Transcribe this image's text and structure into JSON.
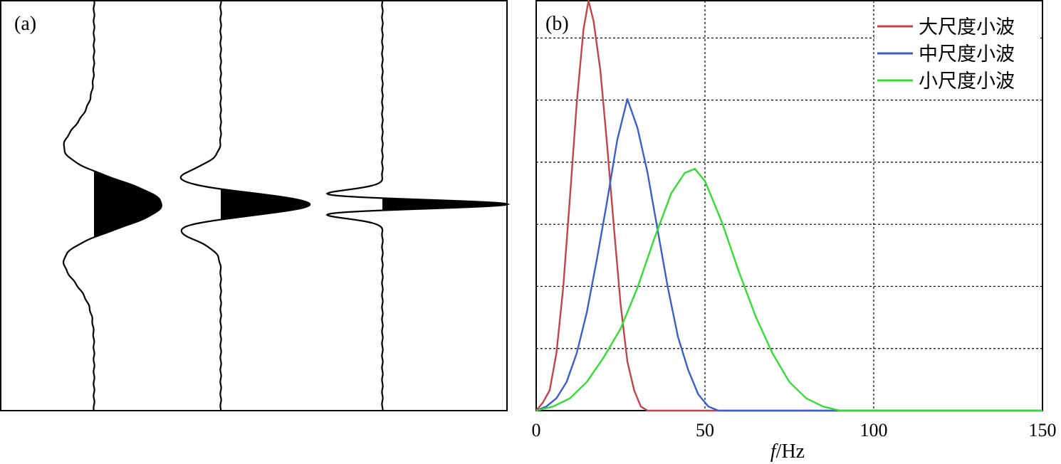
{
  "chart_data": [
    {
      "panel": "(a)",
      "type": "line",
      "traces": [
        {
          "amplitude": 1.0,
          "center": 0.0,
          "width": 0.65,
          "sign": -1
        },
        {
          "amplitude": 1.2,
          "center": 0.0,
          "width": 0.3,
          "sign": -1
        },
        {
          "amplitude": 1.6,
          "center": 0.0,
          "width": 0.12,
          "sign": -1
        }
      ]
    },
    {
      "panel": "(b)",
      "type": "line",
      "xlabel_italic": "f",
      "xlabel_unit": "/Hz",
      "xlim": [
        0,
        150
      ],
      "ylim": [
        0,
        1
      ],
      "x_ticks": [
        "0",
        "50",
        "100",
        "150"
      ],
      "x_tick_values": [
        0,
        50,
        100,
        150
      ],
      "grid": true,
      "legend_position": "top-right",
      "series": [
        {
          "name": "大尺度小波",
          "color": "#c0454a",
          "peak_hz": 15.5,
          "peak": 1.0,
          "points": [
            [
              0,
              0.0
            ],
            [
              2,
              0.02
            ],
            [
              4,
              0.05
            ],
            [
              6,
              0.14
            ],
            [
              8,
              0.3
            ],
            [
              10,
              0.52
            ],
            [
              12,
              0.75
            ],
            [
              14,
              0.93
            ],
            [
              15.5,
              1.0
            ],
            [
              17,
              0.95
            ],
            [
              19,
              0.83
            ],
            [
              21,
              0.65
            ],
            [
              23,
              0.45
            ],
            [
              25,
              0.26
            ],
            [
              27,
              0.12
            ],
            [
              29,
              0.05
            ],
            [
              31,
              0.01
            ],
            [
              33,
              0.0
            ],
            [
              150,
              0.0
            ]
          ]
        },
        {
          "name": "中尺度小波",
          "color": "#3a5fc8",
          "peak_hz": 27,
          "peak": 0.76,
          "points": [
            [
              0,
              0.0
            ],
            [
              3,
              0.01
            ],
            [
              6,
              0.03
            ],
            [
              9,
              0.07
            ],
            [
              12,
              0.14
            ],
            [
              15,
              0.24
            ],
            [
              18,
              0.37
            ],
            [
              21,
              0.51
            ],
            [
              24,
              0.66
            ],
            [
              27,
              0.76
            ],
            [
              30,
              0.69
            ],
            [
              33,
              0.58
            ],
            [
              36,
              0.44
            ],
            [
              39,
              0.3
            ],
            [
              42,
              0.18
            ],
            [
              45,
              0.1
            ],
            [
              48,
              0.04
            ],
            [
              51,
              0.01
            ],
            [
              54,
              0.0
            ],
            [
              150,
              0.0
            ]
          ]
        },
        {
          "name": "小尺度小波",
          "color": "#33dd33",
          "peak_hz": 47,
          "peak": 0.59,
          "points": [
            [
              0,
              0.0
            ],
            [
              5,
              0.01
            ],
            [
              10,
              0.03
            ],
            [
              15,
              0.07
            ],
            [
              20,
              0.13
            ],
            [
              25,
              0.2
            ],
            [
              30,
              0.3
            ],
            [
              35,
              0.42
            ],
            [
              40,
              0.53
            ],
            [
              44,
              0.58
            ],
            [
              47,
              0.59
            ],
            [
              50,
              0.56
            ],
            [
              55,
              0.46
            ],
            [
              60,
              0.34
            ],
            [
              65,
              0.23
            ],
            [
              70,
              0.14
            ],
            [
              75,
              0.07
            ],
            [
              80,
              0.03
            ],
            [
              85,
              0.01
            ],
            [
              90,
              0.0
            ],
            [
              150,
              0.0
            ]
          ]
        }
      ]
    }
  ]
}
